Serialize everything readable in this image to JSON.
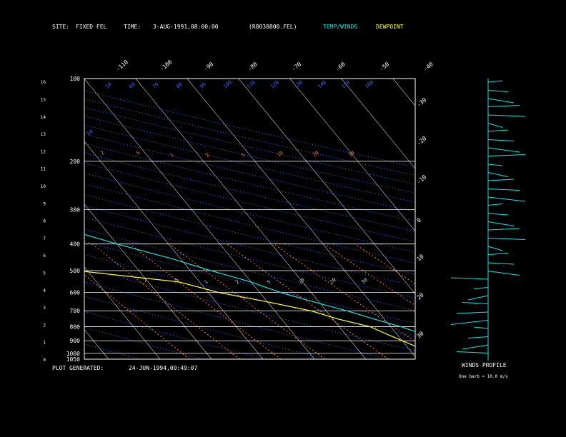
{
  "header": {
    "site_label": "SITE:",
    "site_value": "FIXED FEL",
    "time_label": "TIME:",
    "time_value": "3-AUG-1991,08:00:00",
    "file": "(R8030800.FEL)",
    "temp_legend": "TEMP/WINDS",
    "dew_legend": "DEWPOINT"
  },
  "footer": {
    "generated_label": "PLOT GENERATED:",
    "generated_value": "24-JUN-1994,00:49:07",
    "winds_title": "WINDS PROFILE",
    "barb_note": "One barb = 10.0 m/s"
  },
  "colors": {
    "background": "#000000",
    "temperature": "#22dddd",
    "dewpoint": "#ffff33",
    "isotherm": "#cccccc",
    "dry_adiabat": "#4466ff",
    "mixing_ratio": "#ff7744",
    "winds": "#22dddd"
  },
  "chart_data": {
    "type": "line",
    "pressure_ticks": [
      100,
      200,
      300,
      400,
      500,
      600,
      700,
      800,
      900,
      1000,
      1050
    ],
    "km_ticks": [
      "0",
      "1",
      "2",
      "3",
      "4",
      "5",
      "6",
      "7",
      "8",
      "9",
      "10",
      "11",
      "12",
      "13",
      "14",
      "15",
      "16"
    ],
    "top_temp_ticks": [
      "-110",
      "-100",
      "-90",
      "-80",
      "-70",
      "-60",
      "-50",
      "-40"
    ],
    "right_temp_ticks": [
      "-30",
      "-20",
      "-10",
      "0",
      "10",
      "20",
      "30"
    ],
    "adiabat_labels": [
      "10",
      "50",
      "60",
      "70",
      "80",
      "90",
      "100",
      "110",
      "120",
      "130",
      "140",
      "150",
      "160"
    ],
    "mixing_labels": [
      ".2",
      ".5",
      "1",
      "2",
      "5",
      "10",
      "20",
      "30"
    ],
    "series": [
      {
        "name": "TEMP/WINDS",
        "points": [
          [
            100,
            -66
          ],
          [
            110,
            -70
          ],
          [
            130,
            -74
          ],
          [
            150,
            -74
          ],
          [
            170,
            -73
          ],
          [
            190,
            -73
          ],
          [
            200,
            -71
          ],
          [
            250,
            -58
          ],
          [
            300,
            -47
          ],
          [
            350,
            -38
          ],
          [
            400,
            -30
          ],
          [
            450,
            -22
          ],
          [
            500,
            -16
          ],
          [
            550,
            -10
          ],
          [
            600,
            -6
          ],
          [
            650,
            -1
          ],
          [
            700,
            4
          ],
          [
            750,
            8
          ],
          [
            800,
            12
          ],
          [
            850,
            15
          ],
          [
            900,
            18
          ],
          [
            950,
            21
          ],
          [
            1000,
            24
          ],
          [
            1040,
            27
          ]
        ]
      },
      {
        "name": "DEWPOINT",
        "points": [
          [
            200,
            -82
          ],
          [
            220,
            -84
          ],
          [
            250,
            -86
          ],
          [
            280,
            -92
          ],
          [
            300,
            -95
          ],
          [
            330,
            -92
          ],
          [
            360,
            -80
          ],
          [
            400,
            -72
          ],
          [
            430,
            -60
          ],
          [
            460,
            -56
          ],
          [
            480,
            -48
          ],
          [
            500,
            -42
          ],
          [
            550,
            -24
          ],
          [
            600,
            -18
          ],
          [
            650,
            -10
          ],
          [
            700,
            -3
          ],
          [
            750,
            1
          ],
          [
            800,
            6
          ],
          [
            850,
            8
          ],
          [
            900,
            10
          ],
          [
            950,
            12
          ],
          [
            1000,
            14
          ],
          [
            1040,
            16
          ]
        ]
      }
    ]
  }
}
